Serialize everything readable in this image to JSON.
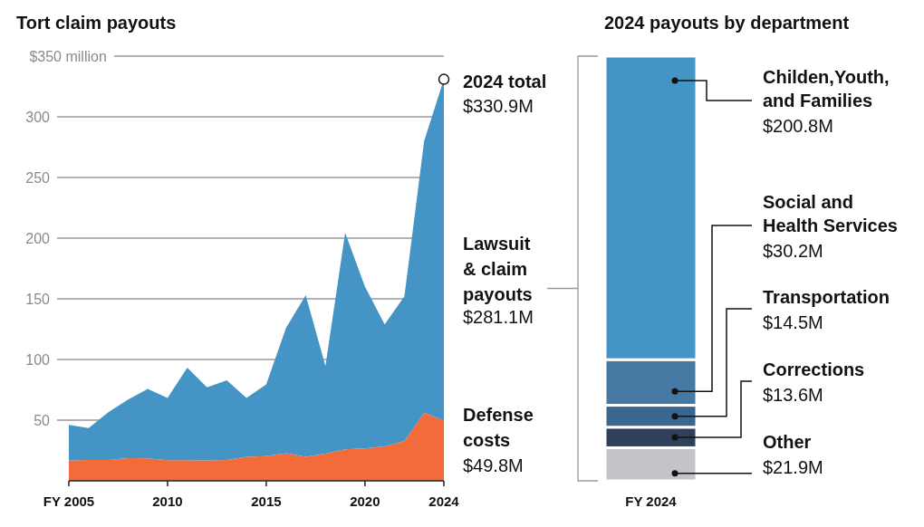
{
  "chart_data": [
    {
      "type": "area",
      "title": "Tort claim payouts",
      "stacked": true,
      "grid": "y",
      "x": [
        2005,
        2006,
        2007,
        2008,
        2009,
        2010,
        2011,
        2012,
        2013,
        2014,
        2015,
        2016,
        2017,
        2018,
        2019,
        2020,
        2021,
        2022,
        2023,
        2024
      ],
      "xlim": [
        2005,
        2024
      ],
      "xticks": [
        {
          "value": 2005,
          "label": "FY 2005"
        },
        2010,
        2015,
        2020,
        2024
      ],
      "ylim": [
        0,
        350
      ],
      "yticks": [
        50,
        100,
        150,
        200,
        250,
        300,
        {
          "value": 350,
          "label": "$350 million"
        }
      ],
      "series": [
        {
          "name": "Defense costs",
          "color": "#f26b38",
          "values": [
            16.7,
            17.2,
            17.2,
            18.7,
            18.4,
            17,
            17,
            16.7,
            17.2,
            19.7,
            20.4,
            22.7,
            19.7,
            22.4,
            25.9,
            26.7,
            28.4,
            32.9,
            56.1,
            49.8
          ],
          "value_labels": [
            null,
            null,
            null,
            null,
            null,
            null,
            null,
            null,
            null,
            null,
            null,
            null,
            null,
            null,
            null,
            null,
            null,
            null,
            null,
            "$49.8M"
          ]
        },
        {
          "name": "Lawsuit & claim payouts",
          "color": "#4495c6",
          "values": [
            29.3,
            26.2,
            39.4,
            48.3,
            57.4,
            51.3,
            76.2,
            60.3,
            65.6,
            48.6,
            59.1,
            103.3,
            133.3,
            72.1,
            178.5,
            133.3,
            100.6,
            119.1,
            223.9,
            281.1
          ]
        }
      ],
      "annotations": [
        {
          "text": "2024 total\n$330.9M",
          "x": 2024,
          "y": 330.9
        },
        "$281.1M"
      ]
    },
    {
      "type": "bar",
      "title": "2024 payouts by department",
      "stacked": true,
      "tick_labels": "x",
      "categories": [
        "FY 2024"
      ],
      "series": [
        {
          "name": "Other",
          "color": "#c4c4c8",
          "values": [
            21.9
          ],
          "value_labels": [
            "$21.9M"
          ]
        },
        {
          "name": "Corrections",
          "color": "#2f4058",
          "values": [
            13.6
          ],
          "value_labels": [
            "$13.6M"
          ]
        },
        {
          "name": "Transportation",
          "color": "#3a668f",
          "values": [
            14.5
          ],
          "value_labels": [
            "$14.5M"
          ]
        },
        {
          "name": "Social and Health Services",
          "color": "#4579a3",
          "values": [
            30.2
          ],
          "value_labels": [
            "$30.2M"
          ]
        },
        {
          "name": "Childen,Youth, and Families",
          "color": "#4495c6",
          "values": [
            200.8
          ],
          "value_labels": [
            "$200.8M"
          ]
        }
      ]
    }
  ]
}
